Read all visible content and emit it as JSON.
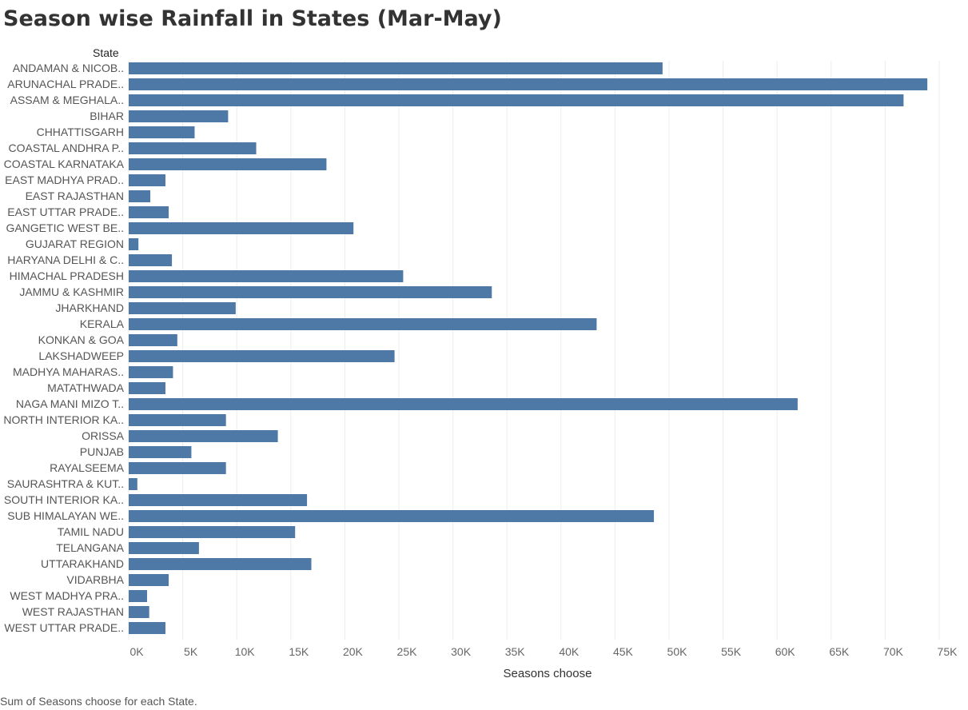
{
  "title": "Season wise Rainfall in States (Mar-May)",
  "row_header": "State",
  "footer": "Sum of Seasons choose for each State.",
  "colors": {
    "bar": "#4e79a7",
    "grid": "#ececec",
    "text": "#555555"
  },
  "chart_data": {
    "type": "bar",
    "orientation": "horizontal",
    "title": "Season wise Rainfall in States (Mar-May)",
    "xlabel": "Seasons choose",
    "ylabel": "State",
    "xlim": [
      0,
      75000
    ],
    "ticks": [
      0,
      5000,
      10000,
      15000,
      20000,
      25000,
      30000,
      35000,
      40000,
      45000,
      50000,
      55000,
      60000,
      65000,
      70000,
      75000
    ],
    "tick_labels": [
      "0K",
      "5K",
      "10K",
      "15K",
      "20K",
      "25K",
      "30K",
      "35K",
      "40K",
      "45K",
      "50K",
      "55K",
      "60K",
      "65K",
      "70K",
      "75K"
    ],
    "grid": true,
    "categories": [
      "ANDAMAN & NICOB..",
      "ARUNACHAL PRADE..",
      "ASSAM & MEGHALA..",
      "BIHAR",
      "CHHATTISGARH",
      "COASTAL ANDHRA P..",
      "COASTAL KARNATAKA",
      "EAST MADHYA PRAD..",
      "EAST RAJASTHAN",
      "EAST UTTAR PRADE..",
      "GANGETIC WEST BE..",
      "GUJARAT REGION",
      "HARYANA DELHI & C..",
      "HIMACHAL PRADESH",
      "JAMMU & KASHMIR",
      "JHARKHAND",
      "KERALA",
      "KONKAN & GOA",
      "LAKSHADWEEP",
      "MADHYA MAHARAS..",
      "MATATHWADA",
      "NAGA MANI MIZO T..",
      "NORTH INTERIOR KA..",
      "ORISSA",
      "PUNJAB",
      "RAYALSEEMA",
      "SAURASHTRA & KUT..",
      "SOUTH INTERIOR KA..",
      "SUB HIMALAYAN WE..",
      "TAMIL NADU",
      "TELANGANA",
      "UTTARAKHAND",
      "VIDARBHA",
      "WEST MADHYA PRA..",
      "WEST RAJASTHAN",
      "WEST UTTAR PRADE.."
    ],
    "values": [
      49400,
      73900,
      71700,
      9200,
      6100,
      11800,
      18300,
      3400,
      2000,
      3700,
      20800,
      900,
      4000,
      25400,
      33600,
      9900,
      43300,
      4500,
      24600,
      4100,
      3400,
      61900,
      9000,
      13800,
      5800,
      9000,
      800,
      16500,
      48600,
      15400,
      6500,
      16900,
      3700,
      1700,
      1900,
      3400
    ]
  }
}
